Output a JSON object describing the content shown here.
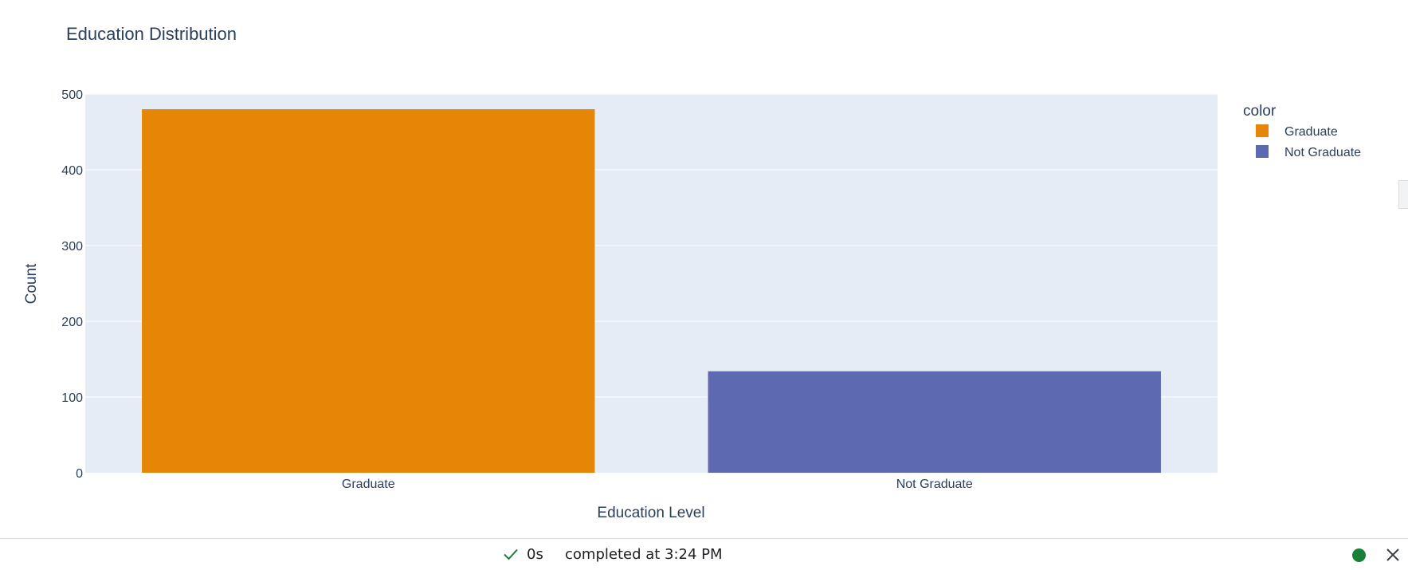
{
  "chart_data": {
    "type": "bar",
    "title": "Education Distribution",
    "xlabel": "Education Level",
    "ylabel": "Count",
    "categories": [
      "Graduate",
      "Not Graduate"
    ],
    "values": [
      480,
      134
    ],
    "colors": [
      "#e58606",
      "#5d69b1"
    ],
    "ylim": [
      0,
      500
    ],
    "yticks": [
      0,
      100,
      200,
      300,
      400,
      500
    ],
    "grid": true,
    "plot_background": "#e5ecf6",
    "legend": {
      "title": "color",
      "placement": "top-right",
      "items": [
        {
          "label": "Graduate",
          "color": "#e58606"
        },
        {
          "label": "Not Graduate",
          "color": "#5d69b1"
        }
      ]
    }
  },
  "status_bar": {
    "check_icon": "checkmark-icon",
    "duration": "0s",
    "text": "completed at 3:24 PM",
    "status_color": "#188038",
    "close_icon": "close-icon"
  }
}
